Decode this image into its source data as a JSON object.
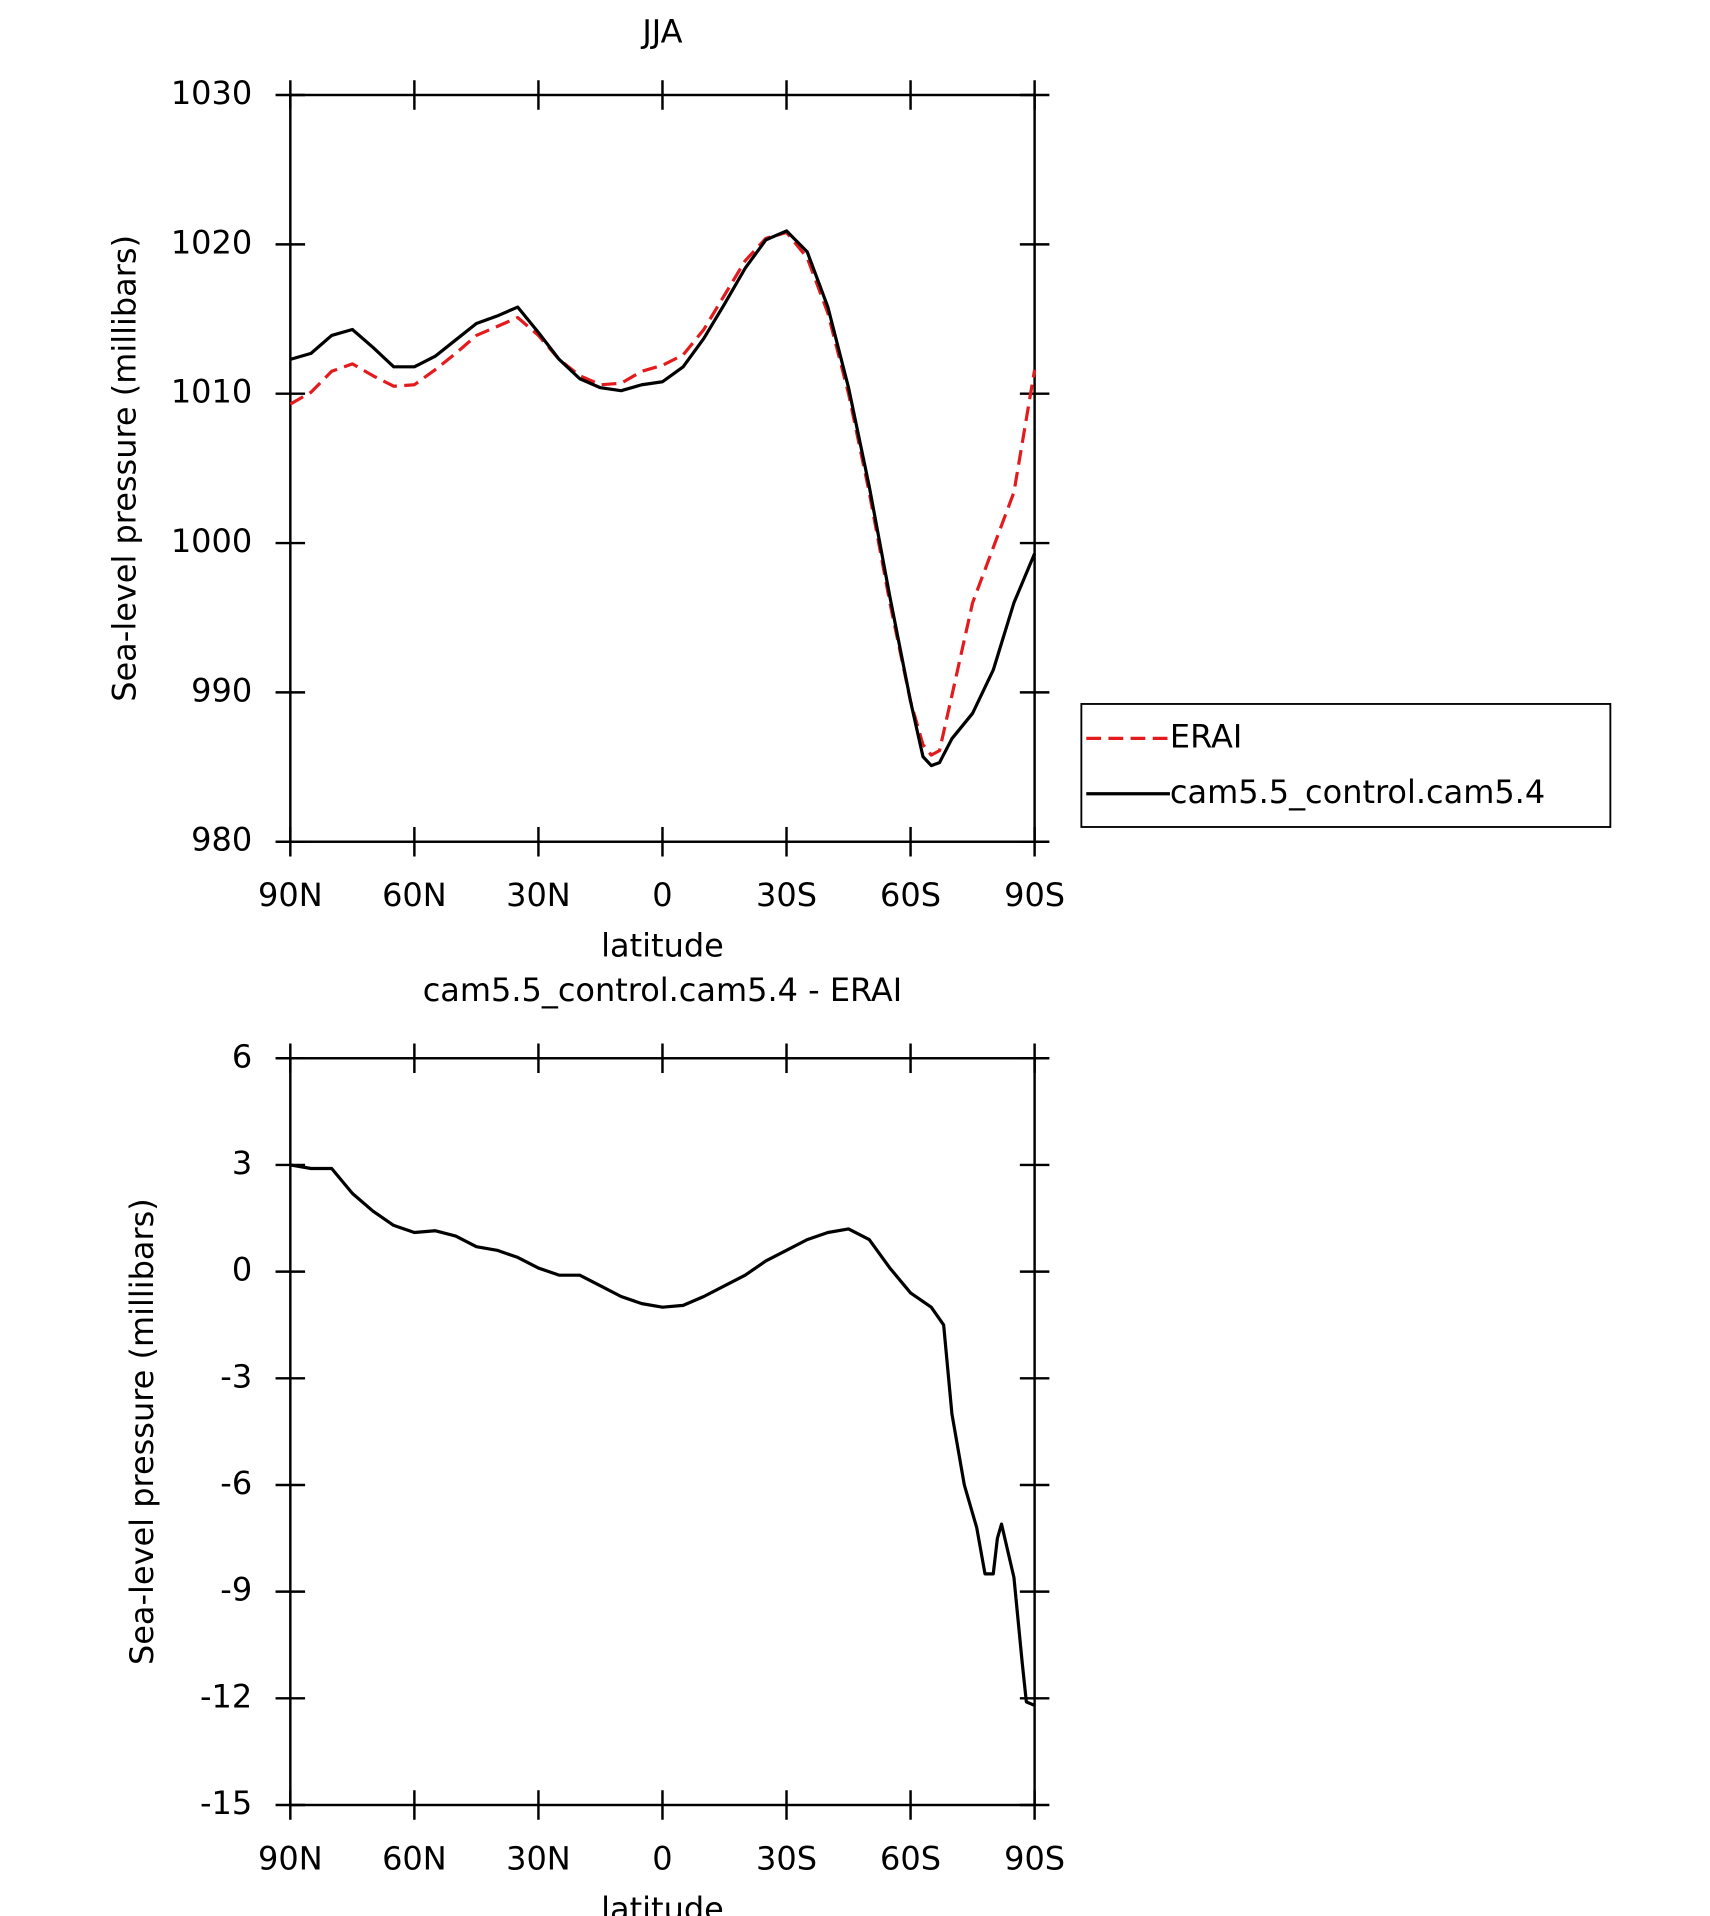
{
  "chart_data": [
    {
      "type": "line",
      "title": "JJA",
      "xlabel": "latitude",
      "ylabel": "Sea-level pressure (millibars)",
      "x": [
        90,
        85,
        80,
        75,
        70,
        65,
        60,
        55,
        50,
        45,
        40,
        35,
        30,
        25,
        20,
        15,
        10,
        5,
        0,
        -5,
        -10,
        -15,
        -20,
        -25,
        -30,
        -35,
        -40,
        -45,
        -50,
        -55,
        -60,
        -63,
        -65,
        -67,
        -70,
        -75,
        -80,
        -85,
        -90
      ],
      "xlim": [
        90,
        -90
      ],
      "xticks": [
        {
          "value": 90,
          "label": "90N"
        },
        {
          "value": 60,
          "label": "60N"
        },
        {
          "value": 30,
          "label": "30N"
        },
        0,
        {
          "value": -30,
          "label": "30S"
        },
        {
          "value": -60,
          "label": "60S"
        },
        {
          "value": -90,
          "label": "90S"
        }
      ],
      "ylim": [
        980,
        1030
      ],
      "yticks": [
        980,
        990,
        1000,
        1010,
        1020,
        1030
      ],
      "legend": "right",
      "series": [
        {
          "name": "ERAI",
          "color": "#e41a1c",
          "line_style": "dashed",
          "values": [
            1009.3,
            1010.1,
            1011.5,
            1012.0,
            1011.2,
            1010.5,
            1010.6,
            1011.6,
            1012.7,
            1013.9,
            1014.5,
            1015.1,
            1013.9,
            1012.3,
            1011.2,
            1010.6,
            1010.7,
            1011.5,
            1011.9,
            1012.6,
            1014.3,
            1016.6,
            1018.9,
            1020.4,
            1020.8,
            1019.1,
            1015.4,
            1010.0,
            1003.4,
            996.0,
            989.4,
            986.5,
            985.8,
            986.1,
            989.8,
            996.0,
            999.7,
            1003.4,
            1011.6
          ]
        },
        {
          "name": "cam5.5_control.cam5.4",
          "color": "#000000",
          "line_style": "solid",
          "values": [
            1012.3,
            1012.7,
            1013.9,
            1014.3,
            1013.1,
            1011.8,
            1011.8,
            1012.5,
            1013.6,
            1014.7,
            1015.2,
            1015.8,
            1014.1,
            1012.3,
            1011.0,
            1010.4,
            1010.2,
            1010.6,
            1010.8,
            1011.8,
            1013.7,
            1016.0,
            1018.4,
            1020.3,
            1020.9,
            1019.5,
            1015.8,
            1010.4,
            1003.8,
            996.4,
            989.4,
            985.7,
            985.1,
            985.3,
            986.9,
            988.6,
            991.5,
            996.0,
            999.3
          ]
        }
      ]
    },
    {
      "type": "line",
      "title": "cam5.5_control.cam5.4 - ERAI",
      "xlabel": "latitude",
      "ylabel": "Sea-level pressure (millibars)",
      "x": [
        90,
        85,
        80,
        75,
        70,
        65,
        60,
        55,
        50,
        45,
        40,
        35,
        30,
        25,
        20,
        15,
        10,
        5,
        0,
        -5,
        -10,
        -15,
        -20,
        -25,
        -30,
        -35,
        -40,
        -45,
        -50,
        -55,
        -60,
        -65,
        -68,
        -70,
        -73,
        -76,
        -78,
        -80,
        -81,
        -82,
        -85,
        -87,
        -88,
        -90
      ],
      "xlim": [
        90,
        -90
      ],
      "xticks": [
        {
          "value": 90,
          "label": "90N"
        },
        {
          "value": 60,
          "label": "60N"
        },
        {
          "value": 30,
          "label": "30N"
        },
        0,
        {
          "value": -30,
          "label": "30S"
        },
        {
          "value": -60,
          "label": "60S"
        },
        {
          "value": -90,
          "label": "90S"
        }
      ],
      "ylim": [
        -15,
        6
      ],
      "yticks": [
        -15,
        -12,
        -9,
        -6,
        -3,
        0,
        3,
        6
      ],
      "series": [
        {
          "color": "#000000",
          "line_style": "solid",
          "values": [
            3.0,
            2.9,
            2.9,
            2.2,
            1.7,
            1.3,
            1.1,
            1.15,
            1.0,
            0.7,
            0.6,
            0.4,
            0.1,
            -0.1,
            -0.1,
            -0.4,
            -0.7,
            -0.9,
            -1.0,
            -0.95,
            -0.7,
            -0.4,
            -0.1,
            0.3,
            0.6,
            0.9,
            1.1,
            1.2,
            0.9,
            0.1,
            -0.6,
            -1.0,
            -1.5,
            -4.0,
            -6.0,
            -7.2,
            -8.5,
            -8.5,
            -7.5,
            -7.1,
            -8.6,
            -11.0,
            -12.1,
            -12.2
          ]
        }
      ]
    }
  ]
}
